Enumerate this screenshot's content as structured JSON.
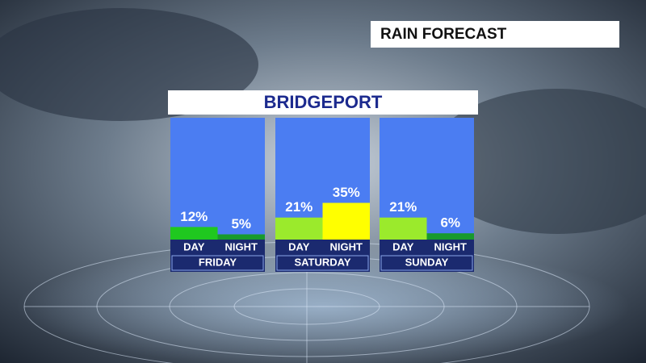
{
  "chart_data": {
    "type": "bar",
    "title": "RAIN FORECAST",
    "subtitle": "BRIDGEPORT",
    "categories": [
      "FRIDAY",
      "SATURDAY",
      "SUNDAY"
    ],
    "series": [
      {
        "name": "DAY",
        "values": [
          12,
          21,
          21
        ],
        "value_labels": [
          "12%",
          "21%",
          "21%"
        ],
        "colors": [
          "#1fc81f",
          "#9bea2c",
          "#9bea2c"
        ]
      },
      {
        "name": "NIGHT",
        "values": [
          5,
          35,
          6
        ],
        "value_labels": [
          "5%",
          "35%",
          "6%"
        ],
        "colors": [
          "#189a2c",
          "#ffff00",
          "#189a2c"
        ]
      }
    ]
  }
}
